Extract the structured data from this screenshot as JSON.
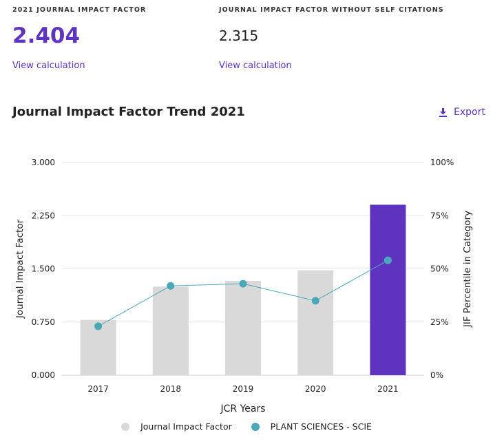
{
  "metrics": [
    {
      "label": "2021 JOURNAL IMPACT FACTOR",
      "value": "2.404",
      "link": "View calculation"
    },
    {
      "label": "JOURNAL IMPACT FACTOR WITHOUT SELF CITATIONS",
      "value": "2.315",
      "link": "View calculation"
    }
  ],
  "section": {
    "title": "Journal Impact Factor Trend 2021",
    "export_label": "Export"
  },
  "colors": {
    "accent": "#5e33bf",
    "bar": "#d9d9d9",
    "bar_highlight": "#5e33bf",
    "line": "#4ba8b8"
  },
  "chart_data": {
    "type": "bar",
    "title": "",
    "xlabel": "JCR Years",
    "ylabel": "Journal Impact Factor",
    "y2label": "JIF Percentile in Category",
    "categories": [
      "2017",
      "2018",
      "2019",
      "2020",
      "2021"
    ],
    "ylim": [
      0,
      3
    ],
    "yticks": [
      "0.000",
      "0.750",
      "1.500",
      "2.250",
      "3.000"
    ],
    "y2lim": [
      0,
      100
    ],
    "y2ticks": [
      "0%",
      "25%",
      "50%",
      "75%",
      "100%"
    ],
    "grid": true,
    "legend_position": "bottom",
    "series": [
      {
        "name": "Journal Impact Factor",
        "type": "bar",
        "axis": "left",
        "values": [
          0.78,
          1.25,
          1.33,
          1.48,
          2.404
        ],
        "highlight_index": 4
      },
      {
        "name": "PLANT SCIENCES - SCIE",
        "type": "line",
        "axis": "right",
        "values": [
          23,
          42,
          43,
          35,
          54
        ]
      }
    ]
  }
}
